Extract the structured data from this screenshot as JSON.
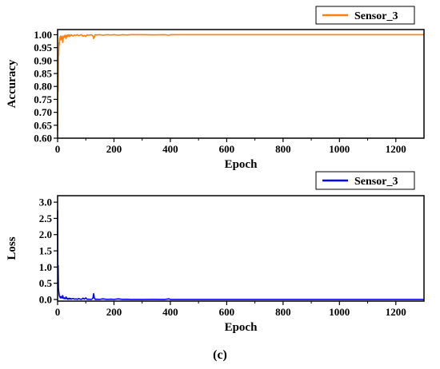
{
  "caption": "(c)",
  "chart_data": [
    {
      "type": "line",
      "xlabel": "Epoch",
      "ylabel": "Accuracy",
      "xlim": [
        0,
        1300
      ],
      "ylim": [
        0.6,
        1.02
      ],
      "xticks": [
        0,
        200,
        400,
        600,
        800,
        1000,
        1200
      ],
      "yticks": [
        0.6,
        0.65,
        0.7,
        0.75,
        0.8,
        0.85,
        0.9,
        0.95,
        1.0
      ],
      "ytick_labels": [
        "0.60",
        "0.65",
        "0.70",
        "0.75",
        "0.80",
        "0.85",
        "0.90",
        "0.95",
        "1.00"
      ],
      "legend_position": "top-right-outside",
      "series": [
        {
          "name": "Sensor_3",
          "color": "#ff7f0e",
          "points": [
            [
              0,
              0.63
            ],
            [
              1,
              0.9
            ],
            [
              2,
              0.78
            ],
            [
              3,
              0.94
            ],
            [
              4,
              0.92
            ],
            [
              5,
              0.97
            ],
            [
              6,
              0.96
            ],
            [
              7,
              0.985
            ],
            [
              8,
              0.98
            ],
            [
              9,
              0.99
            ],
            [
              10,
              0.995
            ],
            [
              12,
              0.98
            ],
            [
              14,
              0.99
            ],
            [
              16,
              0.995
            ],
            [
              18,
              0.97
            ],
            [
              20,
              0.985
            ],
            [
              22,
              0.995
            ],
            [
              24,
              0.99
            ],
            [
              26,
              0.998
            ],
            [
              28,
              0.995
            ],
            [
              30,
              0.985
            ],
            [
              32,
              0.998
            ],
            [
              34,
              0.992
            ],
            [
              36,
              0.999
            ],
            [
              38,
              0.995
            ],
            [
              40,
              1.0
            ],
            [
              42,
              0.993
            ],
            [
              44,
              0.998
            ],
            [
              46,
              0.996
            ],
            [
              48,
              1.0
            ],
            [
              50,
              0.998
            ],
            [
              55,
              0.995
            ],
            [
              60,
              0.999
            ],
            [
              65,
              0.997
            ],
            [
              70,
              1.0
            ],
            [
              75,
              0.996
            ],
            [
              80,
              0.999
            ],
            [
              85,
              1.0
            ],
            [
              90,
              0.994
            ],
            [
              95,
              0.998
            ],
            [
              100,
              0.993
            ],
            [
              105,
              1.0
            ],
            [
              110,
              0.998
            ],
            [
              115,
              0.999
            ],
            [
              120,
              1.0
            ],
            [
              125,
              0.996
            ],
            [
              128,
              0.985
            ],
            [
              130,
              0.99
            ],
            [
              133,
              1.0
            ],
            [
              140,
              0.999
            ],
            [
              150,
              1.0
            ],
            [
              160,
              0.998
            ],
            [
              175,
              1.0
            ],
            [
              190,
              0.999
            ],
            [
              200,
              1.0
            ],
            [
              215,
              0.998
            ],
            [
              230,
              1.0
            ],
            [
              245,
              0.999
            ],
            [
              260,
              1.0
            ],
            [
              300,
              1.0
            ],
            [
              340,
              0.9995
            ],
            [
              380,
              1.0
            ],
            [
              395,
              0.998
            ],
            [
              400,
              1.0
            ],
            [
              500,
              1.0
            ],
            [
              600,
              1.0
            ],
            [
              700,
              1.0
            ],
            [
              800,
              1.0
            ],
            [
              900,
              1.0
            ],
            [
              1000,
              1.0
            ],
            [
              1100,
              1.0
            ],
            [
              1200,
              1.0
            ],
            [
              1300,
              1.0
            ]
          ]
        }
      ]
    },
    {
      "type": "line",
      "xlabel": "Epoch",
      "ylabel": "Loss",
      "xlim": [
        0,
        1300
      ],
      "ylim": [
        -0.05,
        3.2
      ],
      "xticks": [
        0,
        200,
        400,
        600,
        800,
        1000,
        1200
      ],
      "yticks": [
        0.0,
        0.5,
        1.0,
        1.5,
        2.0,
        2.5,
        3.0
      ],
      "ytick_labels": [
        "0.0",
        "0.5",
        "1.0",
        "1.5",
        "2.0",
        "2.5",
        "3.0"
      ],
      "legend_position": "top-right-outside",
      "series": [
        {
          "name": "Sensor_3",
          "color": "#0000ff",
          "points": [
            [
              0,
              2.75
            ],
            [
              1,
              0.6
            ],
            [
              2,
              1.05
            ],
            [
              3,
              0.35
            ],
            [
              4,
              0.25
            ],
            [
              5,
              0.18
            ],
            [
              6,
              0.12
            ],
            [
              7,
              0.1
            ],
            [
              8,
              0.08
            ],
            [
              10,
              0.05
            ],
            [
              12,
              0.09
            ],
            [
              14,
              0.06
            ],
            [
              16,
              0.04
            ],
            [
              18,
              0.12
            ],
            [
              20,
              0.06
            ],
            [
              22,
              0.03
            ],
            [
              24,
              0.05
            ],
            [
              26,
              0.02
            ],
            [
              28,
              0.04
            ],
            [
              30,
              0.08
            ],
            [
              32,
              0.02
            ],
            [
              34,
              0.04
            ],
            [
              36,
              0.01
            ],
            [
              38,
              0.03
            ],
            [
              40,
              0.01
            ],
            [
              42,
              0.04
            ],
            [
              44,
              0.02
            ],
            [
              46,
              0.03
            ],
            [
              48,
              0.01
            ],
            [
              50,
              0.02
            ],
            [
              55,
              0.03
            ],
            [
              60,
              0.01
            ],
            [
              65,
              0.02
            ],
            [
              70,
              0.005
            ],
            [
              75,
              0.03
            ],
            [
              80,
              0.01
            ],
            [
              85,
              0.005
            ],
            [
              90,
              0.04
            ],
            [
              95,
              0.01
            ],
            [
              100,
              0.05
            ],
            [
              105,
              0.005
            ],
            [
              110,
              0.01
            ],
            [
              115,
              0.005
            ],
            [
              120,
              0.003
            ],
            [
              125,
              0.03
            ],
            [
              128,
              0.18
            ],
            [
              130,
              0.06
            ],
            [
              133,
              0.005
            ],
            [
              140,
              0.008
            ],
            [
              150,
              0.003
            ],
            [
              160,
              0.02
            ],
            [
              175,
              0.003
            ],
            [
              190,
              0.01
            ],
            [
              200,
              0.002
            ],
            [
              215,
              0.02
            ],
            [
              230,
              0.003
            ],
            [
              245,
              0.008
            ],
            [
              260,
              0.002
            ],
            [
              300,
              0.002
            ],
            [
              340,
              0.005
            ],
            [
              380,
              0.001
            ],
            [
              395,
              0.02
            ],
            [
              400,
              0.001
            ],
            [
              500,
              0.001
            ],
            [
              600,
              0.001
            ],
            [
              700,
              0.001
            ],
            [
              800,
              0.001
            ],
            [
              900,
              0.001
            ],
            [
              1000,
              0.001
            ],
            [
              1100,
              0.001
            ],
            [
              1200,
              0.001
            ],
            [
              1300,
              0.001
            ]
          ]
        }
      ]
    }
  ]
}
